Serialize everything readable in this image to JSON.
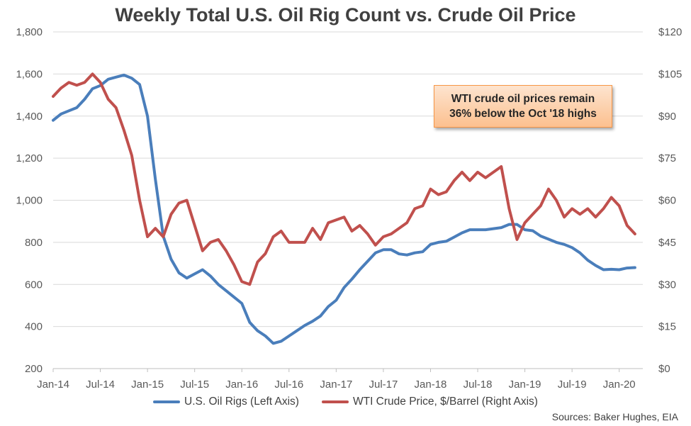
{
  "chart_data": {
    "type": "line",
    "title": "Weekly Total U.S. Oil Rig Count vs. Crude Oil Price",
    "x_axis": {
      "tick_labels": [
        "Jan-14",
        "Jul-14",
        "Jan-15",
        "Jul-15",
        "Jan-16",
        "Jul-16",
        "Jan-17",
        "Jul-17",
        "Jan-18",
        "Jul-18",
        "Jan-19",
        "Jul-19",
        "Jan-20"
      ],
      "range": [
        "2014-01",
        "2020-04"
      ]
    },
    "y_axis_left": {
      "tick_labels": [
        "200",
        "400",
        "600",
        "800",
        "1,000",
        "1,200",
        "1,400",
        "1,600",
        "1,800"
      ],
      "ylim": [
        200,
        1800
      ]
    },
    "y_axis_right": {
      "tick_labels": [
        "$0",
        "$15",
        "$30",
        "$45",
        "$60",
        "$75",
        "$90",
        "$105",
        "$120"
      ],
      "ylim": [
        0,
        120
      ]
    },
    "grid": "horizontal",
    "legend_position": "bottom",
    "series": [
      {
        "name": "U.S. Oil Rigs (Left Axis)",
        "axis": "left",
        "color": "#4a7ebb",
        "points": [
          [
            "2014-01",
            1380
          ],
          [
            "2014-02",
            1410
          ],
          [
            "2014-03",
            1425
          ],
          [
            "2014-04",
            1440
          ],
          [
            "2014-05",
            1480
          ],
          [
            "2014-06",
            1530
          ],
          [
            "2014-07",
            1545
          ],
          [
            "2014-08",
            1575
          ],
          [
            "2014-09",
            1585
          ],
          [
            "2014-10",
            1595
          ],
          [
            "2014-11",
            1580
          ],
          [
            "2014-12",
            1550
          ],
          [
            "2015-01",
            1400
          ],
          [
            "2015-02",
            1100
          ],
          [
            "2015-03",
            830
          ],
          [
            "2015-04",
            720
          ],
          [
            "2015-05",
            655
          ],
          [
            "2015-06",
            630
          ],
          [
            "2015-07",
            650
          ],
          [
            "2015-08",
            670
          ],
          [
            "2015-09",
            640
          ],
          [
            "2015-10",
            600
          ],
          [
            "2015-11",
            570
          ],
          [
            "2015-12",
            540
          ],
          [
            "2016-01",
            510
          ],
          [
            "2016-02",
            420
          ],
          [
            "2016-03",
            380
          ],
          [
            "2016-04",
            355
          ],
          [
            "2016-05",
            320
          ],
          [
            "2016-06",
            330
          ],
          [
            "2016-07",
            355
          ],
          [
            "2016-08",
            380
          ],
          [
            "2016-09",
            405
          ],
          [
            "2016-10",
            425
          ],
          [
            "2016-11",
            450
          ],
          [
            "2016-12",
            495
          ],
          [
            "2017-01",
            525
          ],
          [
            "2017-02",
            585
          ],
          [
            "2017-03",
            625
          ],
          [
            "2017-04",
            670
          ],
          [
            "2017-05",
            710
          ],
          [
            "2017-06",
            750
          ],
          [
            "2017-07",
            765
          ],
          [
            "2017-08",
            765
          ],
          [
            "2017-09",
            745
          ],
          [
            "2017-10",
            740
          ],
          [
            "2017-11",
            750
          ],
          [
            "2017-12",
            755
          ],
          [
            "2018-01",
            790
          ],
          [
            "2018-02",
            800
          ],
          [
            "2018-03",
            805
          ],
          [
            "2018-04",
            825
          ],
          [
            "2018-05",
            845
          ],
          [
            "2018-06",
            860
          ],
          [
            "2018-07",
            860
          ],
          [
            "2018-08",
            860
          ],
          [
            "2018-09",
            865
          ],
          [
            "2018-10",
            870
          ],
          [
            "2018-11",
            885
          ],
          [
            "2018-12",
            885
          ],
          [
            "2019-01",
            860
          ],
          [
            "2019-02",
            855
          ],
          [
            "2019-03",
            830
          ],
          [
            "2019-04",
            815
          ],
          [
            "2019-05",
            800
          ],
          [
            "2019-06",
            790
          ],
          [
            "2019-07",
            775
          ],
          [
            "2019-08",
            750
          ],
          [
            "2019-09",
            715
          ],
          [
            "2019-10",
            690
          ],
          [
            "2019-11",
            670
          ],
          [
            "2019-12",
            672
          ],
          [
            "2020-01",
            670
          ],
          [
            "2020-02",
            678
          ],
          [
            "2020-03",
            680
          ]
        ]
      },
      {
        "name": "WTI Crude Price, $/Barrel (Right Axis)",
        "axis": "right",
        "color": "#c0504d",
        "points": [
          [
            "2014-01",
            97
          ],
          [
            "2014-02",
            100
          ],
          [
            "2014-03",
            102
          ],
          [
            "2014-04",
            101
          ],
          [
            "2014-05",
            102
          ],
          [
            "2014-06",
            105
          ],
          [
            "2014-07",
            102
          ],
          [
            "2014-08",
            96
          ],
          [
            "2014-09",
            93
          ],
          [
            "2014-10",
            85
          ],
          [
            "2014-11",
            76
          ],
          [
            "2014-12",
            60
          ],
          [
            "2015-01",
            47
          ],
          [
            "2015-02",
            50
          ],
          [
            "2015-03",
            47
          ],
          [
            "2015-04",
            55
          ],
          [
            "2015-05",
            59
          ],
          [
            "2015-06",
            60
          ],
          [
            "2015-07",
            51
          ],
          [
            "2015-08",
            42
          ],
          [
            "2015-09",
            45
          ],
          [
            "2015-10",
            46
          ],
          [
            "2015-11",
            42
          ],
          [
            "2015-12",
            37
          ],
          [
            "2016-01",
            31
          ],
          [
            "2016-02",
            30
          ],
          [
            "2016-03",
            38
          ],
          [
            "2016-04",
            41
          ],
          [
            "2016-05",
            47
          ],
          [
            "2016-06",
            49
          ],
          [
            "2016-07",
            45
          ],
          [
            "2016-08",
            45
          ],
          [
            "2016-09",
            45
          ],
          [
            "2016-10",
            50
          ],
          [
            "2016-11",
            46
          ],
          [
            "2016-12",
            52
          ],
          [
            "2017-01",
            53
          ],
          [
            "2017-02",
            54
          ],
          [
            "2017-03",
            49
          ],
          [
            "2017-04",
            51
          ],
          [
            "2017-05",
            48
          ],
          [
            "2017-06",
            44
          ],
          [
            "2017-07",
            47
          ],
          [
            "2017-08",
            48
          ],
          [
            "2017-09",
            50
          ],
          [
            "2017-10",
            52
          ],
          [
            "2017-11",
            57
          ],
          [
            "2017-12",
            58
          ],
          [
            "2018-01",
            64
          ],
          [
            "2018-02",
            62
          ],
          [
            "2018-03",
            63
          ],
          [
            "2018-04",
            67
          ],
          [
            "2018-05",
            70
          ],
          [
            "2018-06",
            67
          ],
          [
            "2018-07",
            70
          ],
          [
            "2018-08",
            68
          ],
          [
            "2018-09",
            70
          ],
          [
            "2018-10",
            72
          ],
          [
            "2018-11",
            57
          ],
          [
            "2018-12",
            46
          ],
          [
            "2019-01",
            52
          ],
          [
            "2019-02",
            55
          ],
          [
            "2019-03",
            58
          ],
          [
            "2019-04",
            64
          ],
          [
            "2019-05",
            60
          ],
          [
            "2019-06",
            54
          ],
          [
            "2019-07",
            57
          ],
          [
            "2019-08",
            55
          ],
          [
            "2019-09",
            57
          ],
          [
            "2019-10",
            54
          ],
          [
            "2019-11",
            57
          ],
          [
            "2019-12",
            61
          ],
          [
            "2020-01",
            58
          ],
          [
            "2020-02",
            51
          ],
          [
            "2020-03",
            48
          ]
        ]
      }
    ]
  },
  "annotation": {
    "line1": "WTI crude oil prices remain",
    "line2": "36% below the Oct '18 highs"
  },
  "source": "Sources: Baker Hughes, EIA"
}
